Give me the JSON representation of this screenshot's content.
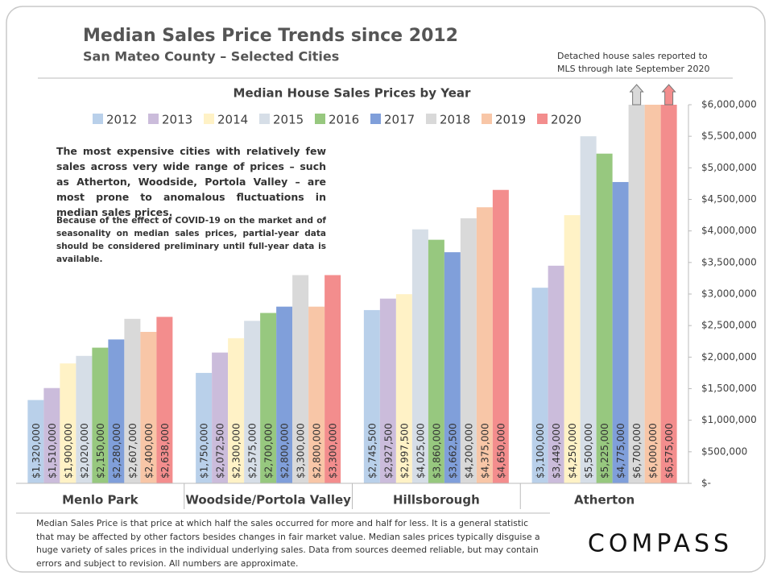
{
  "chart_data": {
    "type": "bar",
    "title": "Median Sales Price Trends since 2012",
    "subtitle": "San Mateo County – Selected Cities",
    "note": [
      "Detached house sales reported to",
      "MLS through late September 2020"
    ],
    "chart_title": "Median House Sales Prices by Year",
    "annotations": [
      "The most expensive cities with relatively few sales across very wide range of prices – such as Atherton, Woodside, Portola Valley – are most prone to anomalous fluctuations in median sales prices.",
      "Because of the effect of COVID-19 on the market and of seasonality on median sales prices, partial-year data should be considered preliminary until full-year data is available."
    ],
    "footer": "Median Sales Price is that price at which half the sales occurred for more and half for less. It is a general statistic that may be affected by other factors besides changes in fair market value. Median sales prices typically disguise a huge variety of sales prices in the individual underlying sales. Data from sources deemed reliable, but may contain errors and subject to revision.  All numbers are approximate.",
    "logo": "COMPASS",
    "categories": [
      "Menlo Park",
      "Woodside/Portola Valley",
      "Hillsborough",
      "Atherton"
    ],
    "series": [
      {
        "name": "2012",
        "color": "#b9d0ea",
        "values": [
          1320000,
          1750000,
          2745500,
          3100000
        ],
        "value_labels": [
          "$1,320,000",
          "$1,750,000",
          "$2,745,500",
          "$3,100,000"
        ]
      },
      {
        "name": "2013",
        "color": "#cbbcdb",
        "values": [
          1510000,
          2072500,
          2927500,
          3449000
        ],
        "value_labels": [
          "$1,510,000",
          "$2,072,500",
          "$2,927,500",
          "$3,449,000"
        ]
      },
      {
        "name": "2014",
        "color": "#fff2c6",
        "values": [
          1900000,
          2300000,
          2997500,
          4250000
        ],
        "value_labels": [
          "$1,900,000",
          "$2,300,000",
          "$2,997,500",
          "$4,250,000"
        ]
      },
      {
        "name": "2015",
        "color": "#d6dee7",
        "values": [
          2020000,
          2575000,
          4025000,
          5500000
        ],
        "value_labels": [
          "$2,020,000",
          "$2,575,000",
          "$4,025,000",
          "$5,500,000"
        ]
      },
      {
        "name": "2016",
        "color": "#97c87f",
        "values": [
          2150000,
          2700000,
          3860000,
          5225000
        ],
        "value_labels": [
          "$2,150,000",
          "$2,700,000",
          "$3,860,000",
          "$5,225,000"
        ]
      },
      {
        "name": "2017",
        "color": "#809fda",
        "values": [
          2280000,
          2800000,
          3662500,
          4775000
        ],
        "value_labels": [
          "$2,280,000",
          "$2,800,000",
          "$3,662,500",
          "$4,775,000"
        ]
      },
      {
        "name": "2018",
        "color": "#d9d9d9",
        "values": [
          2607000,
          3300000,
          4200000,
          6700000
        ],
        "value_labels": [
          "$2,607,000",
          "$3,300,000",
          "$4,200,000",
          "$6,700,000"
        ]
      },
      {
        "name": "2019",
        "color": "#f8c6a7",
        "values": [
          2400000,
          2800000,
          4375000,
          6000000
        ],
        "value_labels": [
          "$2,400,000",
          "$2,800,000",
          "$4,375,000",
          "$6,000,000"
        ]
      },
      {
        "name": "2020",
        "color": "#f38d8d",
        "values": [
          2638000,
          3300000,
          4650000,
          6575000
        ],
        "value_labels": [
          "$2,638,000",
          "$3,300,000",
          "$4,650,000",
          "$6,575,000"
        ]
      }
    ],
    "ylim": [
      0,
      6000000
    ],
    "yticks": [
      {
        "value": 0,
        "label": "$-"
      },
      {
        "value": 500000,
        "label": "$500,000"
      },
      {
        "value": 1000000,
        "label": "$1,000,000"
      },
      {
        "value": 1500000,
        "label": "$1,500,000"
      },
      {
        "value": 2000000,
        "label": "$2,000,000"
      },
      {
        "value": 2500000,
        "label": "$2,500,000"
      },
      {
        "value": 3000000,
        "label": "$3,000,000"
      },
      {
        "value": 3500000,
        "label": "$3,500,000"
      },
      {
        "value": 4000000,
        "label": "$4,000,000"
      },
      {
        "value": 4500000,
        "label": "$4,500,000"
      },
      {
        "value": 5000000,
        "label": "$5,000,000"
      },
      {
        "value": 5500000,
        "label": "$5,500,000"
      },
      {
        "value": 6000000,
        "label": "$6,000,000"
      }
    ],
    "grid": false,
    "legend": "top"
  }
}
